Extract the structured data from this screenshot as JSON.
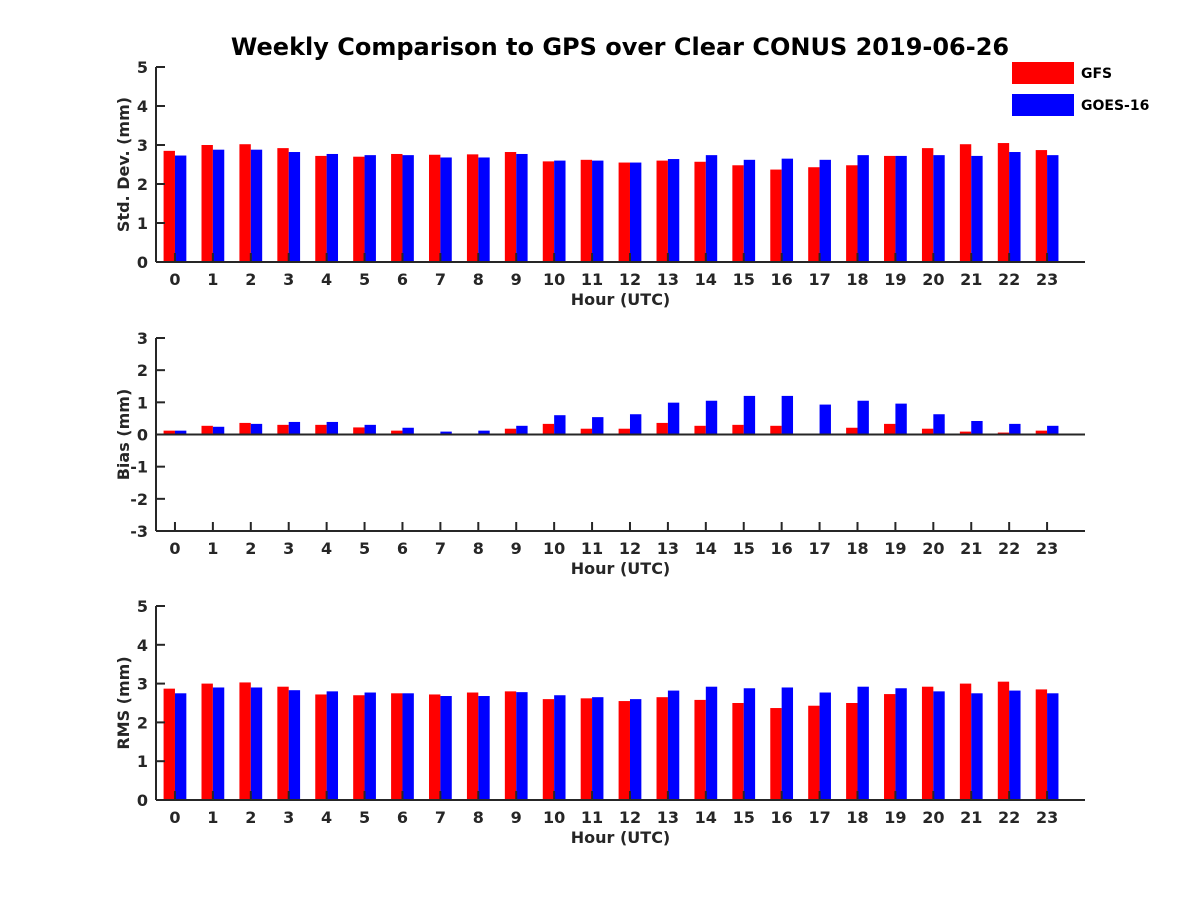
{
  "title": "Weekly Comparison to GPS over Clear CONUS 2019-06-26",
  "legend": {
    "placement": "top-right",
    "entries": [
      {
        "name": "GFS",
        "color": "#ff0000"
      },
      {
        "name": "GOES-16",
        "color": "#0000ff"
      }
    ]
  },
  "chart_data": [
    {
      "type": "bar",
      "xlabel": "Hour (UTC)",
      "ylabel": "Std. Dev. (mm)",
      "ylim": [
        0,
        5
      ],
      "yticks": [
        0,
        1,
        2,
        3,
        4,
        5
      ],
      "categories": [
        0,
        1,
        2,
        3,
        4,
        5,
        6,
        7,
        8,
        9,
        10,
        11,
        12,
        13,
        14,
        15,
        16,
        17,
        18,
        19,
        20,
        21,
        22,
        23
      ],
      "series": [
        {
          "name": "GFS",
          "color": "#ff0000",
          "values": [
            2.85,
            3.0,
            3.02,
            2.92,
            2.72,
            2.7,
            2.77,
            2.75,
            2.76,
            2.82,
            2.58,
            2.62,
            2.55,
            2.6,
            2.57,
            2.48,
            2.37,
            2.43,
            2.48,
            2.72,
            2.92,
            3.02,
            3.05,
            2.87
          ]
        },
        {
          "name": "GOES-16",
          "color": "#0000ff",
          "values": [
            2.73,
            2.88,
            2.88,
            2.82,
            2.77,
            2.74,
            2.74,
            2.68,
            2.68,
            2.77,
            2.6,
            2.6,
            2.55,
            2.64,
            2.74,
            2.62,
            2.65,
            2.62,
            2.74,
            2.72,
            2.74,
            2.72,
            2.82,
            2.74
          ]
        }
      ]
    },
    {
      "type": "bar",
      "xlabel": "Hour (UTC)",
      "ylabel": "Bias (mm)",
      "ylim": [
        -3,
        3
      ],
      "yticks": [
        -3,
        -2,
        -1,
        0,
        1,
        2,
        3
      ],
      "categories": [
        0,
        1,
        2,
        3,
        4,
        5,
        6,
        7,
        8,
        9,
        10,
        11,
        12,
        13,
        14,
        15,
        16,
        17,
        18,
        19,
        20,
        21,
        22,
        23
      ],
      "series": [
        {
          "name": "GFS",
          "color": "#ff0000",
          "values": [
            0.12,
            0.27,
            0.36,
            0.3,
            0.3,
            0.22,
            0.12,
            0.02,
            0.02,
            0.18,
            0.33,
            0.18,
            0.18,
            0.36,
            0.27,
            0.3,
            0.27,
            0.01,
            0.21,
            0.33,
            0.18,
            0.09,
            0.06,
            0.12
          ]
        },
        {
          "name": "GOES-16",
          "color": "#0000ff",
          "values": [
            0.12,
            0.24,
            0.33,
            0.39,
            0.39,
            0.3,
            0.21,
            0.09,
            0.12,
            0.27,
            0.6,
            0.54,
            0.63,
            0.99,
            1.05,
            1.2,
            1.2,
            0.93,
            1.05,
            0.96,
            0.63,
            0.42,
            0.33,
            0.27
          ]
        }
      ]
    },
    {
      "type": "bar",
      "xlabel": "Hour (UTC)",
      "ylabel": "RMS (mm)",
      "ylim": [
        0,
        5
      ],
      "yticks": [
        0,
        1,
        2,
        3,
        4,
        5
      ],
      "categories": [
        0,
        1,
        2,
        3,
        4,
        5,
        6,
        7,
        8,
        9,
        10,
        11,
        12,
        13,
        14,
        15,
        16,
        17,
        18,
        19,
        20,
        21,
        22,
        23
      ],
      "series": [
        {
          "name": "GFS",
          "color": "#ff0000",
          "values": [
            2.87,
            3.0,
            3.03,
            2.92,
            2.72,
            2.7,
            2.75,
            2.72,
            2.77,
            2.8,
            2.6,
            2.62,
            2.55,
            2.65,
            2.58,
            2.5,
            2.37,
            2.43,
            2.5,
            2.73,
            2.92,
            3.0,
            3.05,
            2.85
          ]
        },
        {
          "name": "GOES-16",
          "color": "#0000ff",
          "values": [
            2.75,
            2.9,
            2.9,
            2.83,
            2.8,
            2.77,
            2.75,
            2.68,
            2.68,
            2.78,
            2.7,
            2.65,
            2.6,
            2.82,
            2.92,
            2.88,
            2.9,
            2.77,
            2.92,
            2.88,
            2.8,
            2.75,
            2.82,
            2.75
          ]
        }
      ]
    }
  ]
}
